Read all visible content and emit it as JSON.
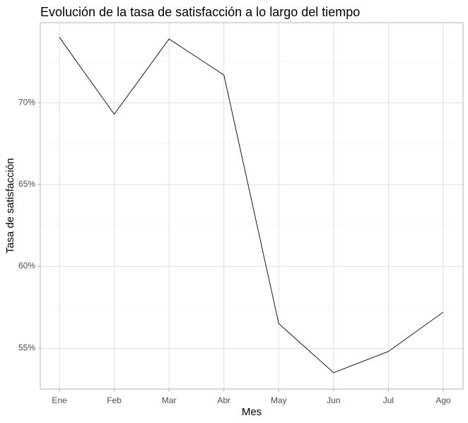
{
  "chart_data": {
    "type": "line",
    "title": "Evolución de la tasa de satisfacción a lo largo del tiempo",
    "x_label": "Mes",
    "y_label": "Tasa de satisfacción",
    "categories": [
      "Ene",
      "Feb",
      "Mar",
      "Abr",
      "May",
      "Jun",
      "Jul",
      "Ago"
    ],
    "values": [
      74.0,
      69.3,
      73.9,
      71.7,
      56.5,
      53.5,
      54.8,
      57.2
    ],
    "color": "#000000",
    "ylim": [
      52.5,
      74.9
    ],
    "yticks": [
      {
        "value": 55,
        "label": "55%"
      },
      {
        "value": 60,
        "label": "60%"
      },
      {
        "value": 65,
        "label": "65%"
      },
      {
        "value": 70,
        "label": "70%"
      }
    ],
    "grid": true
  }
}
